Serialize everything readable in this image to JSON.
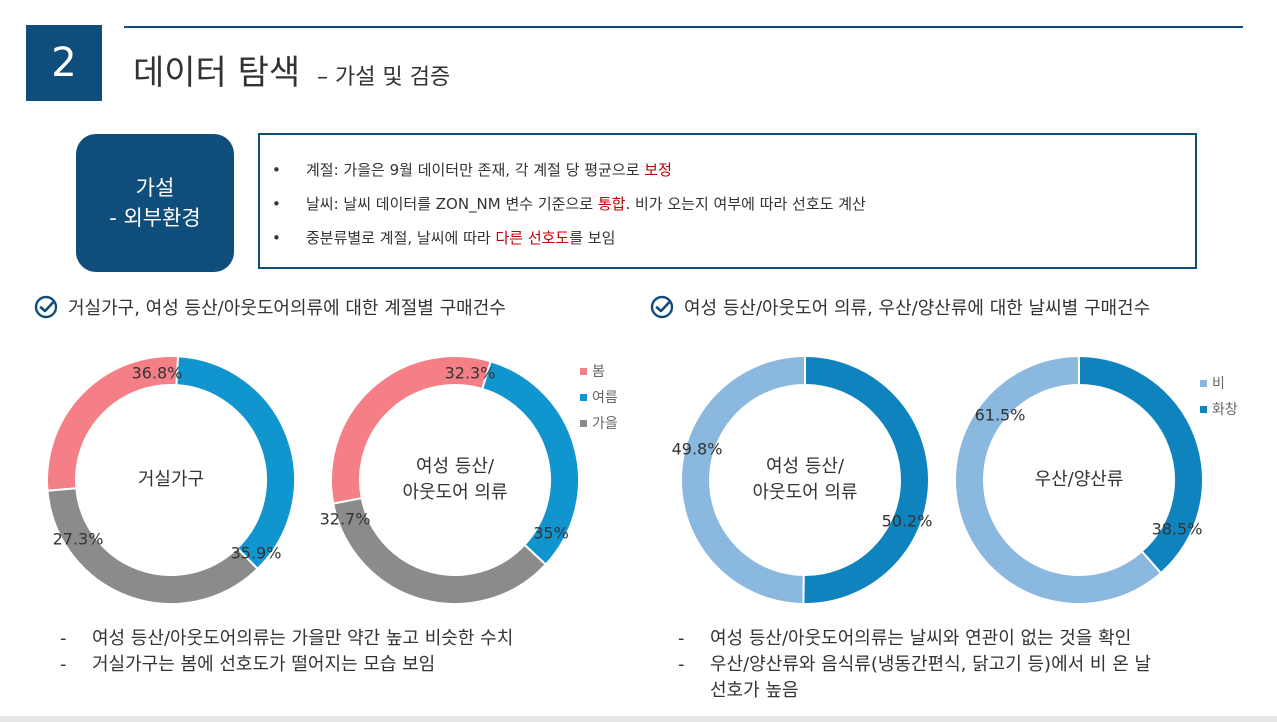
{
  "slide": {
    "number": "2",
    "title": "데이터 탐색",
    "subtitle": "– 가설 및 검증"
  },
  "hypothesis": {
    "line1": "가설",
    "line2": "- 외부환경"
  },
  "bullets": [
    {
      "pre": "계절: 가을은 9월 데이터만 존재, 각 계절 당 평균으로 ",
      "hl": "보정",
      "post": ""
    },
    {
      "pre": "날씨: 날씨 데이터를 ZON_NM 변수 기준으로 ",
      "hl": "통합",
      "post": ". 비가 오는지 여부에 따라 선호도 계산"
    },
    {
      "pre": "중분류별로 계절, 날씨에 따라 ",
      "hl": "다른 선호도",
      "post": "를 보임"
    }
  ],
  "left_section": {
    "heading": "거실가구, 여성 등산/아웃도어의류에 대한 계절별 구매건수",
    "notes": [
      "여성 등산/아웃도어의류는 가을만 약간 높고 비슷한 수치",
      "거실가구는 봄에 선호도가 떨어지는 모습 보임"
    ]
  },
  "right_section": {
    "heading": "여성 등산/아웃도어 의류, 우산/양산류에 대한 날씨별 구매건수",
    "notes": [
      "여성 등산/아웃도어의류는 날씨와 연관이 없는 것을 확인",
      "우산/양산류와 음식류(냉동간편식, 닭고기 등)에서 비 온 날",
      "선호가 높음"
    ]
  },
  "colors": {
    "navy": "#0f4d7a",
    "highlight": "#c00000",
    "spring": "#f47f87",
    "summer": "#1195cf",
    "autumn": "#8a8c8c",
    "rain": "#8ab8de",
    "sunny": "#0f83bd"
  },
  "chart_data": [
    {
      "type": "pie",
      "center_label": [
        "거실가구"
      ],
      "categories": [
        "봄",
        "여름",
        "가을"
      ],
      "values": [
        27.3,
        36.8,
        35.9
      ],
      "labels": [
        "27.3%",
        "36.8%",
        "35.9%"
      ],
      "legend": "right"
    },
    {
      "type": "pie",
      "center_label": [
        "여성 등산/",
        "아웃도어 의류"
      ],
      "categories": [
        "봄",
        "여름",
        "가을"
      ],
      "values": [
        32.7,
        32.3,
        35
      ],
      "labels": [
        "32.7%",
        "32.3%",
        "35%"
      ],
      "legend": "top-right"
    },
    {
      "type": "pie",
      "center_label": [
        "여성 등산/",
        "아웃도어 의류"
      ],
      "categories": [
        "비",
        "화창"
      ],
      "values": [
        49.8,
        50.2
      ],
      "labels": [
        "49.8%",
        "50.2%"
      ],
      "legend": "right"
    },
    {
      "type": "pie",
      "center_label": [
        "우산/양산류"
      ],
      "categories": [
        "비",
        "화창"
      ],
      "values": [
        61.5,
        38.5
      ],
      "labels": [
        "61.5%",
        "38.5%"
      ],
      "legend": "top-right"
    }
  ],
  "legends": {
    "season": [
      "봄",
      "여름",
      "가을"
    ],
    "weather": [
      "비",
      "화창"
    ]
  }
}
